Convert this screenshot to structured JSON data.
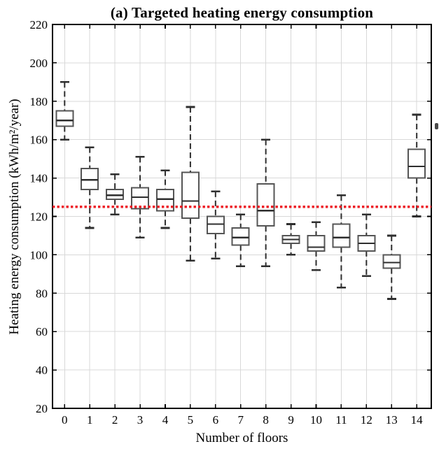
{
  "chart_data": {
    "type": "boxplot",
    "title": "(a) Targeted heating energy consumption",
    "xlabel": "Number of floors",
    "ylabel": "Heating energy consumption (kWh/m²/year)",
    "categories": [
      "0",
      "1",
      "2",
      "3",
      "4",
      "5",
      "6",
      "7",
      "8",
      "9",
      "10",
      "11",
      "12",
      "13",
      "14"
    ],
    "ylim": [
      20,
      220
    ],
    "yticks": [
      20,
      40,
      60,
      80,
      100,
      120,
      140,
      160,
      180,
      200,
      220
    ],
    "grid": true,
    "legend": "none",
    "boxes": [
      {
        "floor": "0",
        "whisker_low": 160,
        "q1": 167,
        "median": 170,
        "q3": 175,
        "whisker_high": 190
      },
      {
        "floor": "1",
        "whisker_low": 114,
        "q1": 134,
        "median": 139,
        "q3": 145,
        "whisker_high": 156
      },
      {
        "floor": "2",
        "whisker_low": 121,
        "q1": 129,
        "median": 131,
        "q3": 134,
        "whisker_high": 142
      },
      {
        "floor": "3",
        "whisker_low": 109,
        "q1": 124,
        "median": 130,
        "q3": 135,
        "whisker_high": 151
      },
      {
        "floor": "4",
        "whisker_low": 114,
        "q1": 123,
        "median": 129,
        "q3": 134,
        "whisker_high": 144
      },
      {
        "floor": "5",
        "whisker_low": 97,
        "q1": 119,
        "median": 128,
        "q3": 143,
        "whisker_high": 177
      },
      {
        "floor": "6",
        "whisker_low": 98,
        "q1": 111,
        "median": 116,
        "q3": 120,
        "whisker_high": 133
      },
      {
        "floor": "7",
        "whisker_low": 94,
        "q1": 105,
        "median": 109,
        "q3": 114,
        "whisker_high": 121
      },
      {
        "floor": "8",
        "whisker_low": 94,
        "q1": 115,
        "median": 123,
        "q3": 137,
        "whisker_high": 160
      },
      {
        "floor": "9",
        "whisker_low": 100,
        "q1": 106,
        "median": 108,
        "q3": 110,
        "whisker_high": 116
      },
      {
        "floor": "10",
        "whisker_low": 92,
        "q1": 102,
        "median": 104,
        "q3": 110,
        "whisker_high": 117
      },
      {
        "floor": "11",
        "whisker_low": 83,
        "q1": 104,
        "median": 109,
        "q3": 116,
        "whisker_high": 131
      },
      {
        "floor": "12",
        "whisker_low": 89,
        "q1": 102,
        "median": 106,
        "q3": 110,
        "whisker_high": 121
      },
      {
        "floor": "13",
        "whisker_low": 77,
        "q1": 93,
        "median": 96,
        "q3": 100,
        "whisker_high": 110
      },
      {
        "floor": "14",
        "whisker_low": 120,
        "q1": 140,
        "median": 146,
        "q3": 155,
        "whisker_high": 173
      }
    ],
    "reference_line": {
      "value": 125,
      "style": "dotted",
      "color": "#ed1c24"
    }
  },
  "colors": {
    "background": "#ffffff",
    "axis": "#000000",
    "grid": "#d8d8d8",
    "box_stroke": "#555555",
    "box_fill": "#ffffff",
    "median": "#2e2e2e",
    "whisker": "#2e2e2e",
    "reference": "#ed1c24"
  }
}
